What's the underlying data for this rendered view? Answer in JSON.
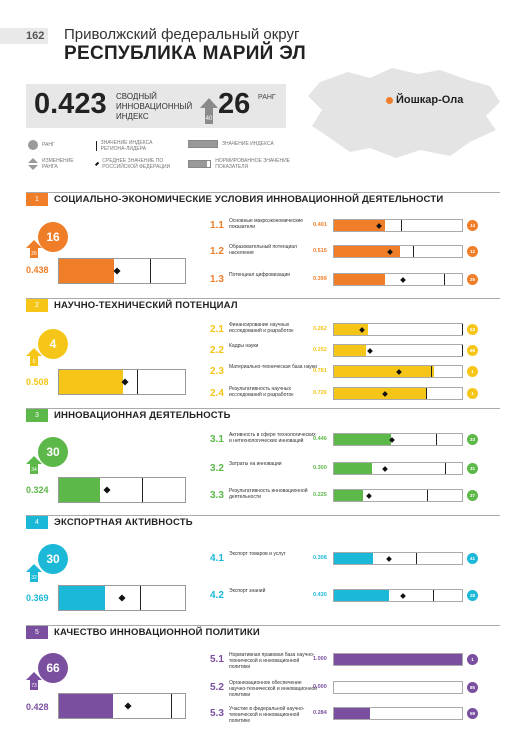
{
  "page_number": "162",
  "district": "Приволжский федеральный округ",
  "region": "РЕСПУБЛИКА МАРИЙ ЭЛ",
  "summary": {
    "value": "0.423",
    "label_lines": [
      "СВОДНЫЙ",
      "ИННОВАЦИОННЫЙ",
      "ИНДЕКС"
    ],
    "rank": "26",
    "rank_label": "РАНГ",
    "leader_rank": "40"
  },
  "capital": "Йошкар-Ола",
  "legend": {
    "rank": "РАНГ",
    "leader": "ЗНАЧЕНИЕ ИНДЕКСА РЕГИОНА-ЛИДЕРА",
    "index_value": "ЗНАЧЕНИЕ ИНДЕКСА",
    "rank_change": "ИЗМЕНЕНИЕ РАНГА",
    "rf_avg": "СРЕДНЕЕ ЗНАЧЕНИЕ ПО РОССИЙСКОЙ ФЕДЕРАЦИИ",
    "normalized": "НОРМИРОВАННОЕ ЗНАЧЕНИЕ ПОКАЗАТЕЛЯ"
  },
  "sections": [
    {
      "num": "1",
      "title": "СОЦИАЛЬНО-ЭКОНОМИЧЕСКИЕ УСЛОВИЯ ИННОВАЦИОННОЙ ДЕЯТЕЛЬНОСТИ",
      "color": "#f07d28",
      "rank": "16",
      "leader_rank": "26",
      "value": "0.438",
      "fill": 0.438,
      "avg": 0.46,
      "leader": 0.72,
      "subs": [
        {
          "num": "1.1",
          "label": "Основные макроэкономические показатели",
          "value": "0.401",
          "fill": 0.401,
          "avg": 0.35,
          "leader": 0.52,
          "rank": "14"
        },
        {
          "num": "1.2",
          "label": "Образовательный потенциал населения",
          "value": "0.515",
          "fill": 0.515,
          "avg": 0.44,
          "leader": 0.62,
          "rank": "12"
        },
        {
          "num": "1.3",
          "label": "Потенциал цифровизации",
          "value": "0.399",
          "fill": 0.399,
          "avg": 0.54,
          "leader": 0.86,
          "rank": "25"
        }
      ]
    },
    {
      "num": "2",
      "title": "НАУЧНО-ТЕХНИЧЕСКИЙ ПОТЕНЦИАЛ",
      "color": "#f5c518",
      "rank": "4",
      "leader_rank": "6",
      "value": "0.508",
      "fill": 0.508,
      "avg": 0.52,
      "leader": 0.62,
      "subs": [
        {
          "num": "2.1",
          "label": "Финансирование научных исследований и разработок",
          "value": "0.262",
          "fill": 0.262,
          "avg": 0.22,
          "leader": 1.0,
          "rank": "53"
        },
        {
          "num": "2.2",
          "label": "Кадры науки",
          "value": "0.252",
          "fill": 0.252,
          "avg": 0.28,
          "leader": 1.0,
          "rank": "65"
        },
        {
          "num": "2.3",
          "label": "Материально-техническая база науки",
          "value": "0.781",
          "fill": 0.781,
          "avg": 0.51,
          "leader": 0.76,
          "rank": "1"
        },
        {
          "num": "2.4",
          "label": "Результативность научных исследований и разработок",
          "value": "0.726",
          "fill": 0.726,
          "avg": 0.4,
          "leader": 0.72,
          "rank": "1"
        }
      ]
    },
    {
      "num": "3",
      "title": "ИННОВАЦИОННАЯ ДЕЯТЕЛЬНОСТЬ",
      "color": "#5cb848",
      "rank": "30",
      "leader_rank": "34",
      "value": "0.324",
      "fill": 0.324,
      "avg": 0.38,
      "leader": 0.66,
      "subs": [
        {
          "num": "3.1",
          "label": "Активность в сфере технологических и нетехнологических инноваций",
          "value": "0.446",
          "fill": 0.446,
          "avg": 0.45,
          "leader": 0.8,
          "rank": "33"
        },
        {
          "num": "3.2",
          "label": "Затраты на инновации",
          "value": "0.300",
          "fill": 0.3,
          "avg": 0.4,
          "leader": 0.87,
          "rank": "31"
        },
        {
          "num": "3.3",
          "label": "Результативность инновационной деятельности",
          "value": "0.225",
          "fill": 0.225,
          "avg": 0.27,
          "leader": 0.73,
          "rank": "37"
        }
      ]
    },
    {
      "num": "4",
      "title": "ЭКСПОРТНАЯ АКТИВНОСТЬ",
      "color": "#1bb8d8",
      "rank": "30",
      "leader_rank": "32",
      "value": "0.369",
      "fill": 0.369,
      "avg": 0.5,
      "leader": 0.64,
      "subs": [
        {
          "num": "4.1",
          "label": "Экспорт товаров и услуг",
          "value": "0.308",
          "fill": 0.308,
          "avg": 0.43,
          "leader": 0.64,
          "rank": "41"
        },
        {
          "num": "4.2",
          "label": "Экспорт знаний",
          "value": "0.430",
          "fill": 0.43,
          "avg": 0.54,
          "leader": 0.77,
          "rank": "28"
        }
      ]
    },
    {
      "num": "5",
      "title": "КАЧЕСТВО ИННОВАЦИОННОЙ ПОЛИТИКИ",
      "color": "#7b4fa0",
      "rank": "66",
      "leader_rank": "73",
      "value": "0.428",
      "fill": 0.428,
      "avg": 0.55,
      "leader": 0.89,
      "subs": [
        {
          "num": "5.1",
          "label": "Нормативная правовая база научно-технической и инновационной политики",
          "value": "1.000",
          "fill": 1.0,
          "avg": null,
          "leader": null,
          "rank": "1"
        },
        {
          "num": "5.2",
          "label": "Организационное обеспечение научно-технической и инновационной политики",
          "value": "0.000",
          "fill": 0.0,
          "avg": null,
          "leader": null,
          "rank": "85"
        },
        {
          "num": "5.3",
          "label": "Участие в федеральной научно-технической и инновационной политике",
          "value": "0.284",
          "fill": 0.284,
          "avg": null,
          "leader": null,
          "rank": "59"
        }
      ]
    }
  ]
}
